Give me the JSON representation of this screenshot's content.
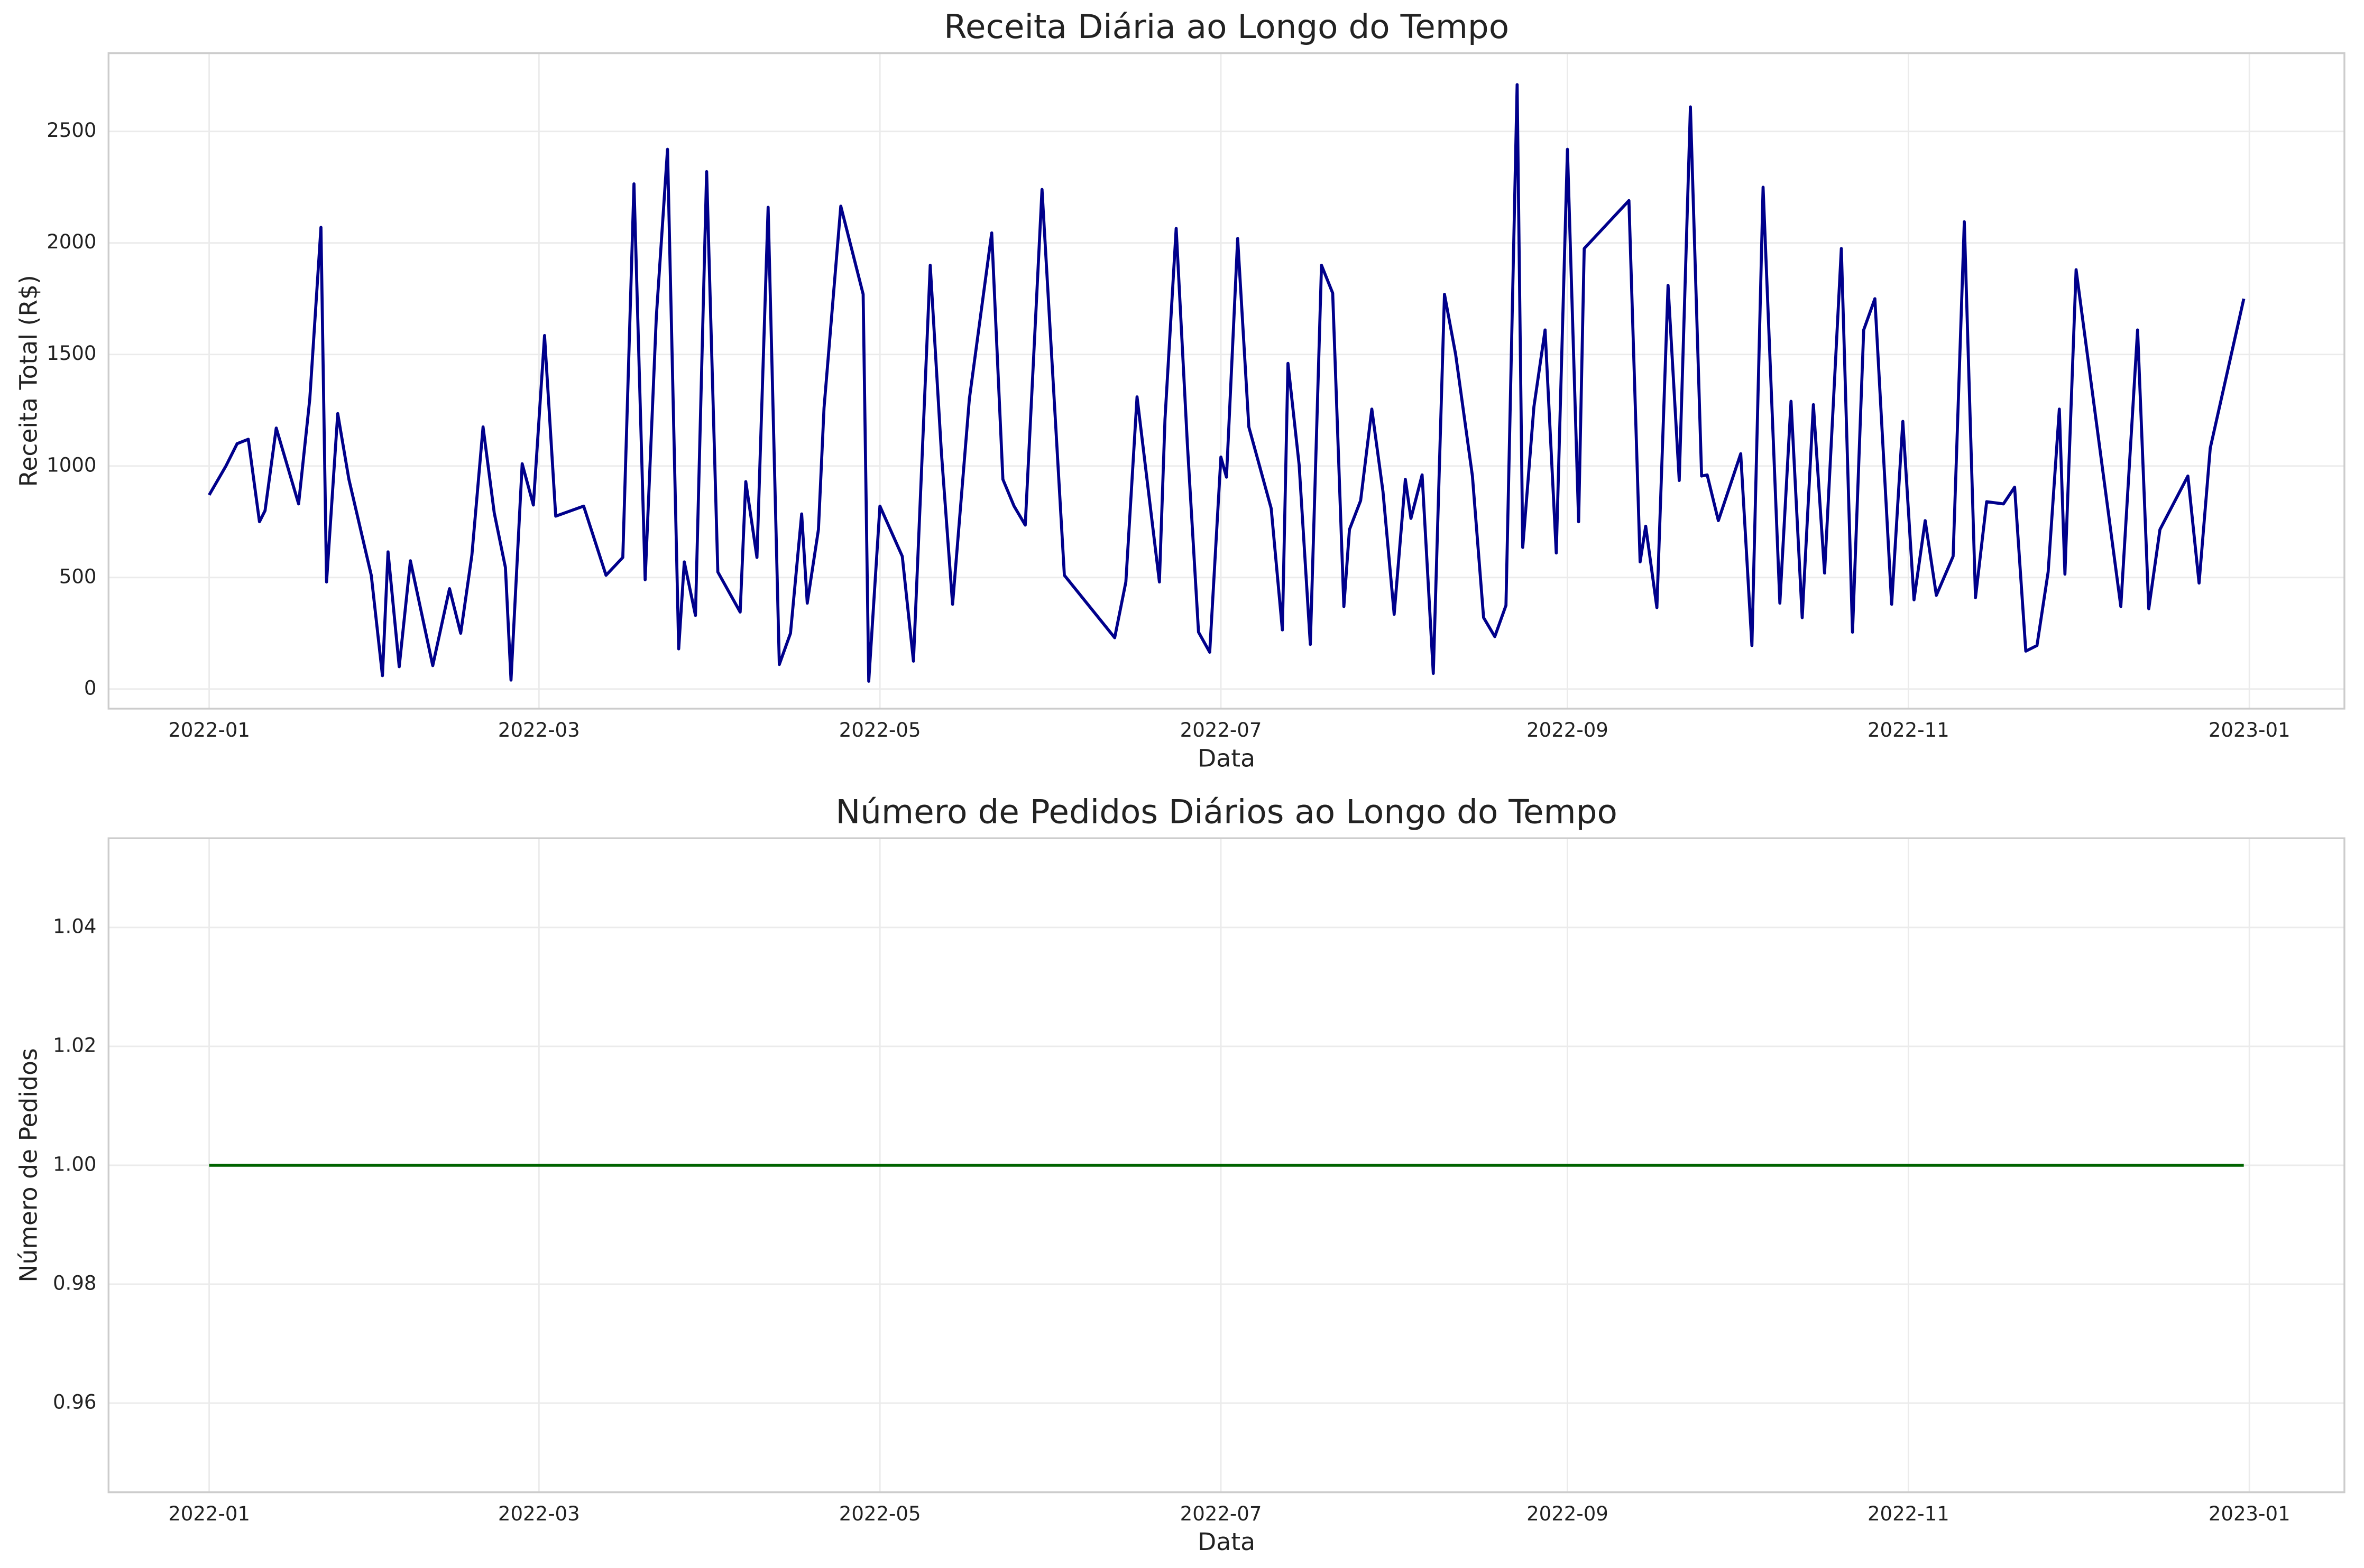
{
  "chart_data": [
    {
      "type": "line",
      "title": "Receita Diária ao Longo do Tempo",
      "xlabel": "Data",
      "ylabel": "Receita Total (R$)",
      "color": "#00008b",
      "grid": true,
      "x": [
        0,
        3,
        5,
        7,
        9,
        10,
        12,
        16,
        18,
        20,
        21,
        23,
        25,
        29,
        31,
        32,
        34,
        36,
        40,
        43,
        45,
        47,
        49,
        51,
        53,
        54,
        56,
        58,
        60,
        62,
        67,
        71,
        74,
        76,
        78,
        80,
        82,
        84,
        85,
        87,
        89,
        91,
        95,
        96,
        98,
        100,
        102,
        104,
        106,
        107,
        109,
        110,
        113,
        117,
        118,
        120,
        124,
        126,
        129,
        131,
        133,
        136,
        140,
        142,
        144,
        146,
        149,
        153,
        162,
        164,
        166,
        170,
        171,
        173,
        175,
        177,
        179,
        181,
        182,
        184,
        186,
        190,
        192,
        193,
        195,
        197,
        199,
        201,
        203,
        204,
        206,
        208,
        210,
        212,
        214,
        215,
        217,
        219,
        221,
        223,
        226,
        228,
        230,
        232,
        234,
        235,
        237,
        239,
        241,
        243,
        245,
        246,
        254,
        256,
        257,
        259,
        261,
        263,
        265,
        267,
        268,
        270,
        274,
        276,
        278,
        281,
        283,
        285,
        287,
        289,
        292,
        294,
        296,
        298,
        301,
        303,
        305,
        307,
        309,
        312,
        314,
        316,
        318,
        321,
        323,
        325,
        327,
        329,
        331,
        332,
        334,
        342,
        345,
        347,
        349,
        354,
        356,
        358,
        364
      ],
      "values": [
        870,
        1000,
        1100,
        1120,
        750,
        800,
        1170,
        830,
        1300,
        2070,
        480,
        1235,
        940,
        510,
        60,
        615,
        100,
        575,
        105,
        450,
        250,
        600,
        1175,
        790,
        545,
        40,
        1010,
        825,
        1585,
        775,
        820,
        510,
        590,
        2265,
        490,
        1670,
        2420,
        180,
        570,
        330,
        2320,
        525,
        345,
        930,
        590,
        2160,
        110,
        250,
        785,
        385,
        715,
        1260,
        2165,
        1770,
        35,
        820,
        595,
        125,
        1900,
        1060,
        380,
        1300,
        2045,
        940,
        820,
        735,
        2240,
        510,
        230,
        480,
        1310,
        480,
        1210,
        2065,
        1100,
        255,
        165,
        1040,
        950,
        2020,
        1175,
        810,
        265,
        1460,
        1005,
        200,
        1900,
        1775,
        370,
        715,
        845,
        1255,
        885,
        335,
        940,
        765,
        960,
        70,
        1770,
        1500,
        955,
        320,
        235,
        375,
        2710,
        635,
        1265,
        1610,
        610,
        2420,
        750,
        1975,
        2190,
        570,
        730,
        365,
        1810,
        935,
        2610,
        955,
        960,
        755,
        1055,
        195,
        2250,
        385,
        1290,
        320,
        1275,
        520,
        1975,
        255,
        1610,
        1750,
        380,
        1200,
        400,
        755,
        420,
        595,
        2095,
        410,
        840,
        830,
        905,
        170,
        195,
        525,
        1255,
        515,
        1880,
        370,
        1610,
        360,
        715,
        955,
        475,
        1080,
        1750
      ],
      "xlim": [
        -18,
        382
      ],
      "xticks": [
        {
          "value": 0,
          "label": "2022-01"
        },
        {
          "value": 59,
          "label": "2022-03"
        },
        {
          "value": 120,
          "label": "2022-05"
        },
        {
          "value": 181,
          "label": "2022-07"
        },
        {
          "value": 243,
          "label": "2022-09"
        },
        {
          "value": 304,
          "label": "2022-11"
        },
        {
          "value": 365,
          "label": "2023-01"
        }
      ],
      "ylim": [
        -88,
        2851
      ],
      "yticks": [
        0,
        500,
        1000,
        1500,
        2000,
        2500
      ]
    },
    {
      "type": "line",
      "title": "Número de Pedidos Diários ao Longo do Tempo",
      "xlabel": "Data",
      "ylabel": "Número de Pedidos",
      "color": "#006400",
      "grid": true,
      "x": [
        0,
        3,
        5,
        7,
        9,
        10,
        12,
        16,
        18,
        20,
        21,
        23,
        25,
        29,
        31,
        32,
        34,
        36,
        40,
        43,
        45,
        47,
        49,
        51,
        53,
        54,
        56,
        58,
        60,
        62,
        67,
        71,
        74,
        76,
        78,
        80,
        82,
        84,
        85,
        87,
        89,
        91,
        95,
        96,
        98,
        100,
        102,
        104,
        106,
        107,
        109,
        110,
        113,
        117,
        118,
        120,
        124,
        126,
        129,
        131,
        133,
        136,
        140,
        142,
        144,
        146,
        149,
        153,
        162,
        164,
        166,
        170,
        171,
        173,
        175,
        177,
        179,
        181,
        182,
        184,
        186,
        190,
        192,
        193,
        195,
        197,
        199,
        201,
        203,
        204,
        206,
        208,
        210,
        212,
        214,
        215,
        217,
        219,
        221,
        223,
        226,
        228,
        230,
        232,
        234,
        235,
        237,
        239,
        241,
        243,
        245,
        246,
        254,
        256,
        257,
        259,
        261,
        263,
        265,
        267,
        268,
        270,
        274,
        276,
        278,
        281,
        283,
        285,
        287,
        289,
        292,
        294,
        296,
        298,
        301,
        303,
        305,
        307,
        309,
        312,
        314,
        316,
        318,
        321,
        323,
        325,
        327,
        329,
        331,
        332,
        334,
        342,
        345,
        347,
        349,
        354,
        356,
        358,
        364
      ],
      "values": [
        1,
        1,
        1,
        1,
        1,
        1,
        1,
        1,
        1,
        1,
        1,
        1,
        1,
        1,
        1,
        1,
        1,
        1,
        1,
        1,
        1,
        1,
        1,
        1,
        1,
        1,
        1,
        1,
        1,
        1,
        1,
        1,
        1,
        1,
        1,
        1,
        1,
        1,
        1,
        1,
        1,
        1,
        1,
        1,
        1,
        1,
        1,
        1,
        1,
        1,
        1,
        1,
        1,
        1,
        1,
        1,
        1,
        1,
        1,
        1,
        1,
        1,
        1,
        1,
        1,
        1,
        1,
        1,
        1,
        1,
        1,
        1,
        1,
        1,
        1,
        1,
        1,
        1,
        1,
        1,
        1,
        1,
        1,
        1,
        1,
        1,
        1,
        1,
        1,
        1,
        1,
        1,
        1,
        1,
        1,
        1,
        1,
        1,
        1,
        1,
        1,
        1,
        1,
        1,
        1,
        1,
        1,
        1,
        1,
        1,
        1,
        1,
        1,
        1,
        1,
        1,
        1,
        1,
        1,
        1,
        1,
        1,
        1,
        1,
        1,
        1,
        1,
        1,
        1,
        1,
        1,
        1,
        1,
        1,
        1,
        1,
        1,
        1,
        1,
        1,
        1,
        1,
        1,
        1,
        1,
        1,
        1,
        1,
        1,
        1,
        1,
        1,
        1,
        1,
        1,
        1,
        1,
        1,
        1
      ],
      "xlim": [
        -18,
        382
      ],
      "xticks": [
        {
          "value": 0,
          "label": "2022-01"
        },
        {
          "value": 59,
          "label": "2022-03"
        },
        {
          "value": 120,
          "label": "2022-05"
        },
        {
          "value": 181,
          "label": "2022-07"
        },
        {
          "value": 243,
          "label": "2022-09"
        },
        {
          "value": 304,
          "label": "2022-11"
        },
        {
          "value": 365,
          "label": "2023-01"
        }
      ],
      "ylim": [
        0.945,
        1.055
      ],
      "yticks": [
        0.96,
        0.98,
        {
          "value": 1,
          "label": "1.00"
        },
        1.02,
        1.04
      ]
    }
  ]
}
